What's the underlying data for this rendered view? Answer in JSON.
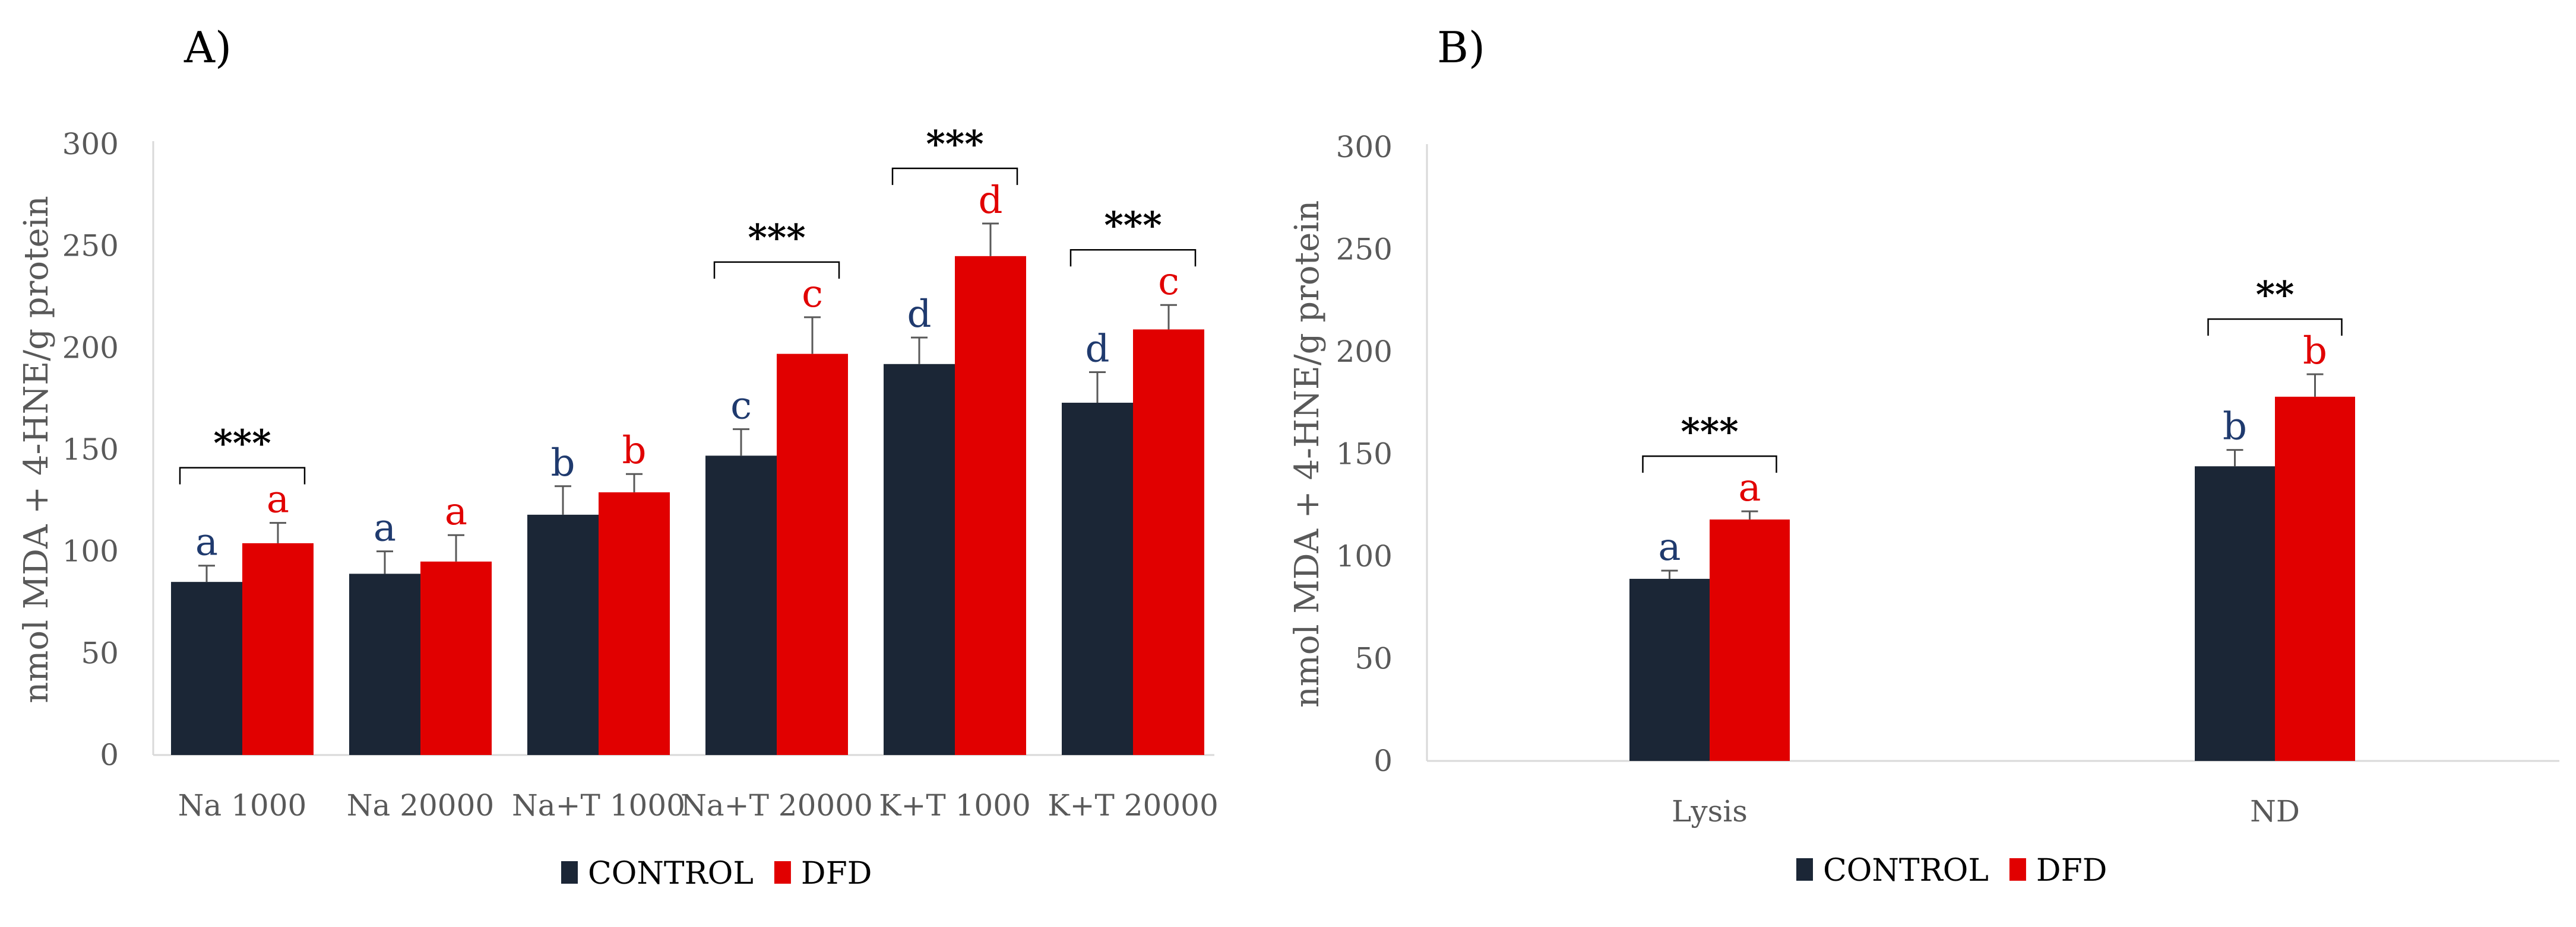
{
  "colors": {
    "control": "#1b2636",
    "dfd": "#e10000",
    "control_letter": "#1f3a6e",
    "dfd_letter": "#e10000"
  },
  "chart_data": [
    {
      "panel": "A)",
      "type": "bar",
      "ylabel": "nmol MDA + 4-HNE/g protein",
      "ylim": [
        0,
        300
      ],
      "yticks": [
        "0",
        "50",
        "100",
        "150",
        "200",
        "250",
        "300"
      ],
      "grid": false,
      "legend_position": "bottom",
      "categories": [
        "Na 1000",
        "Na 20000",
        "Na+T 1000",
        "Na+T 20000",
        "K+T 1000",
        "K+T 20000"
      ],
      "series": [
        {
          "name": "CONTROL",
          "values": [
            85,
            89,
            118,
            147,
            192,
            173
          ],
          "errors": [
            8,
            11,
            14,
            13,
            13,
            15
          ],
          "letters": [
            "a",
            "a",
            "b",
            "c",
            "d",
            "d"
          ]
        },
        {
          "name": "DFD",
          "values": [
            104,
            95,
            129,
            197,
            245,
            209
          ],
          "errors": [
            10,
            13,
            9,
            18,
            16,
            12
          ],
          "letters": [
            "a",
            "a",
            "b",
            "c",
            "d",
            "c"
          ]
        }
      ],
      "significance": [
        "***",
        "",
        "",
        "***",
        "***",
        "***"
      ]
    },
    {
      "panel": "B)",
      "type": "bar",
      "ylabel": "nmol MDA + 4-HNE/g protein",
      "ylim": [
        0,
        300
      ],
      "yticks": [
        "0",
        "50",
        "100",
        "150",
        "200",
        "250",
        "300"
      ],
      "grid": false,
      "legend_position": "bottom",
      "categories": [
        "Lysis",
        "ND"
      ],
      "series": [
        {
          "name": "CONTROL",
          "values": [
            89,
            144
          ],
          "errors": [
            4,
            8
          ],
          "letters": [
            "a",
            "b"
          ]
        },
        {
          "name": "DFD",
          "values": [
            118,
            178
          ],
          "errors": [
            4,
            11
          ],
          "letters": [
            "a",
            "b"
          ]
        }
      ],
      "significance": [
        "***",
        "**"
      ]
    }
  ]
}
